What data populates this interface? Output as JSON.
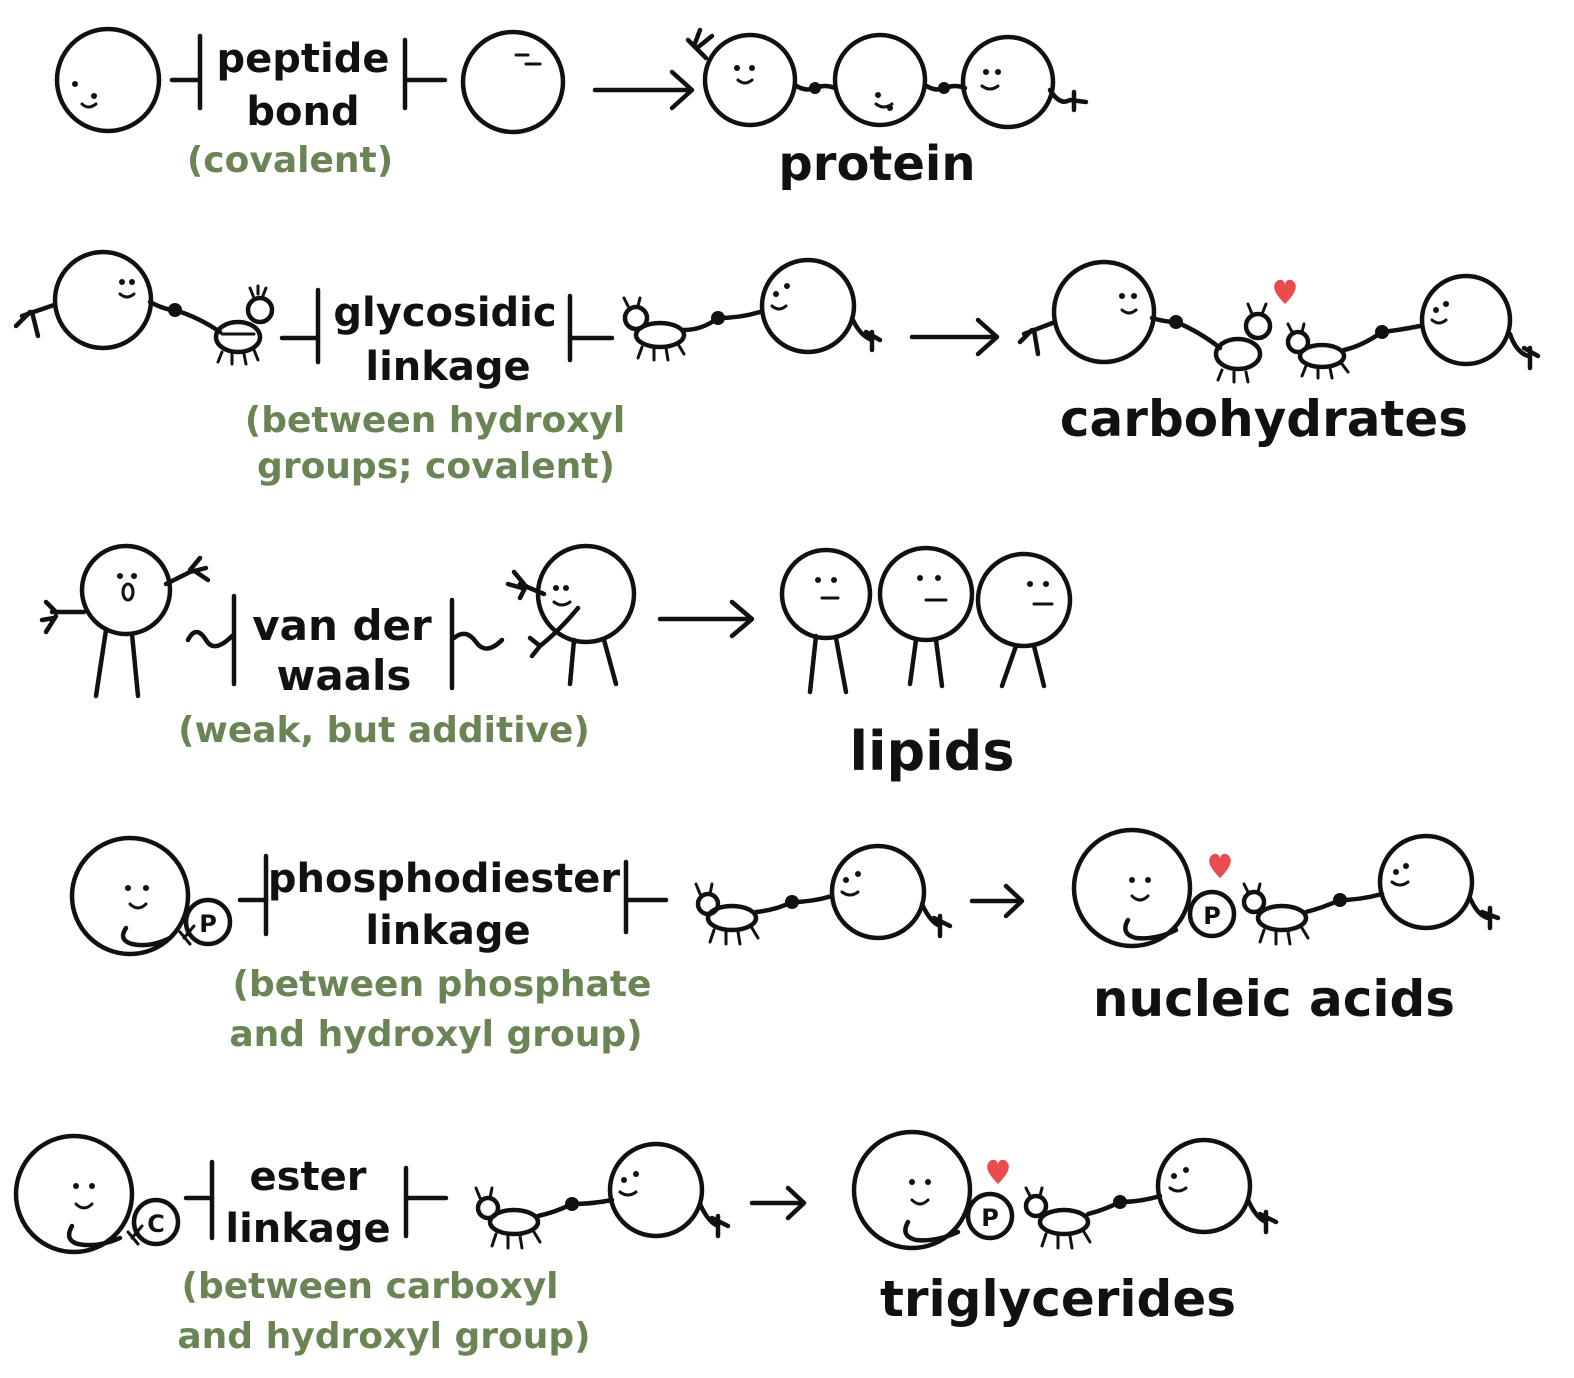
{
  "colors": {
    "ink": "#111111",
    "note": "#6b8455",
    "heart": "#e84c4c"
  },
  "rows": [
    {
      "bond_lines": [
        "peptide",
        "bond"
      ],
      "note_lines": [
        "(covalent)"
      ],
      "result": "protein"
    },
    {
      "bond_lines": [
        "glycosidic",
        "linkage"
      ],
      "note_lines": [
        "(between hydroxyl",
        "groups; covalent)"
      ],
      "result": "carbohydrates"
    },
    {
      "bond_lines": [
        "van der",
        "waals"
      ],
      "note_lines": [
        "(weak, but additive)"
      ],
      "result": "lipids"
    },
    {
      "bond_lines": [
        "phosphodiester",
        "linkage"
      ],
      "note_lines": [
        "(between phosphate",
        "and hydroxyl group)"
      ],
      "result": "nucleic acids"
    },
    {
      "bond_lines": [
        "ester",
        "linkage"
      ],
      "note_lines": [
        "(between carboxyl",
        "and hydroxyl group)"
      ],
      "result": "triglycerides"
    }
  ],
  "badges": {
    "phosphate": "P",
    "carboxyl": "C"
  },
  "icons": [
    "smiley-molecule",
    "chain-molecule",
    "bug-monomer",
    "heart-icon",
    "arrow-right-icon",
    "bond-bracket-icon"
  ]
}
